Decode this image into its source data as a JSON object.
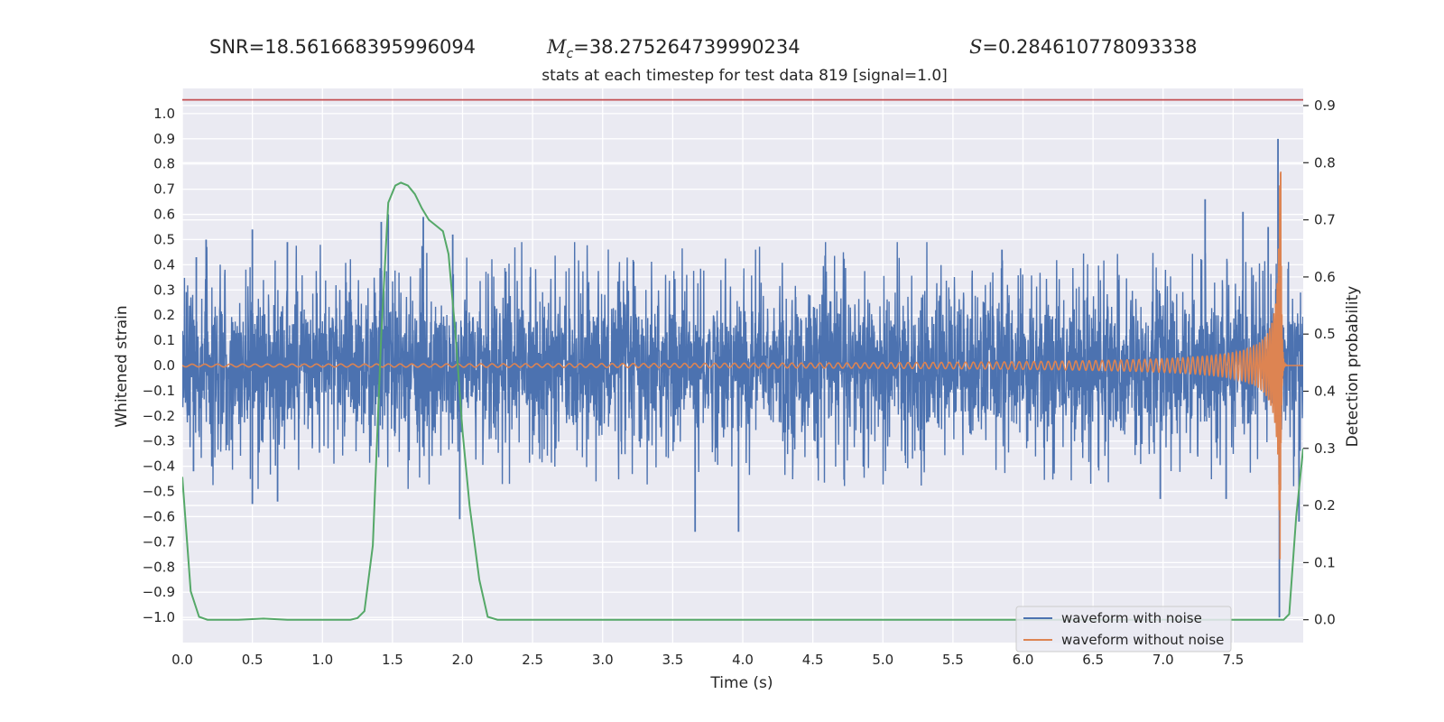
{
  "stats": {
    "snr": "SNR=18.561668395996094",
    "mc_symbol": "M",
    "mc_sub": "c",
    "mc_value": "=38.275264739990234",
    "s_symbol": "S",
    "s_value": "=0.284610778093338"
  },
  "chart_data": {
    "type": "line",
    "title": "stats at each timestep for test data 819 [signal=1.0]",
    "xlabel": "Time (s)",
    "ylabel": "Whitened strain",
    "y2label": "Detection probability",
    "xlim": [
      0,
      8
    ],
    "ylim": [
      -1.1,
      1.1
    ],
    "y2lim": [
      -0.04,
      0.93
    ],
    "xticks": [
      0.0,
      0.5,
      1.0,
      1.5,
      2.0,
      2.5,
      3.0,
      3.5,
      4.0,
      4.5,
      5.0,
      5.5,
      6.0,
      6.5,
      7.0,
      7.5
    ],
    "xtick_labels": [
      "0.0",
      "0.5",
      "1.0",
      "1.5",
      "2.0",
      "2.5",
      "3.0",
      "3.5",
      "4.0",
      "4.5",
      "5.0",
      "5.5",
      "6.0",
      "6.5",
      "7.0",
      "7.5"
    ],
    "yticks": [
      1.0,
      0.9,
      0.8,
      0.7,
      0.6,
      0.5,
      0.4,
      0.3,
      0.2,
      0.1,
      0.0,
      -0.1,
      -0.2,
      -0.3,
      -0.4,
      -0.5,
      -0.6,
      -0.7,
      -0.8,
      -0.9,
      -1.0
    ],
    "ytick_labels": [
      "1.0",
      "0.9",
      "0.8",
      "0.7",
      "0.6",
      "0.5",
      "0.4",
      "0.3",
      "0.2",
      "0.1",
      "0.0",
      "−0.1",
      "−0.2",
      "−0.3",
      "−0.4",
      "−0.5",
      "−0.6",
      "−0.7",
      "−0.8",
      "−0.9",
      "−1.0"
    ],
    "y2ticks": [
      0.9,
      0.8,
      0.7,
      0.6,
      0.5,
      0.4,
      0.3,
      0.2,
      0.1,
      0.0
    ],
    "y2tick_labels": [
      "0.9",
      "0.8",
      "0.7",
      "0.6",
      "0.5",
      "0.4",
      "0.3",
      "0.2",
      "0.1",
      "0.0"
    ],
    "grid": true,
    "legend_position": "bottom-right",
    "threshold": {
      "axis": "y2",
      "value": 0.91,
      "color": "#c44e52"
    },
    "series": [
      {
        "name": "waveform with noise",
        "axis": "y",
        "color": "#4c72b0",
        "style": "dense-noise",
        "envelope_typical": 0.3,
        "peak_events": [
          {
            "x": 0.1,
            "y": 0.43
          },
          {
            "x": 0.17,
            "y": 0.5
          },
          {
            "x": 0.5,
            "y": 0.54
          },
          {
            "x": 0.75,
            "y": 0.49
          },
          {
            "x": 1.42,
            "y": 0.57
          },
          {
            "x": 1.47,
            "y": 0.6
          },
          {
            "x": 1.72,
            "y": 0.59
          },
          {
            "x": 1.93,
            "y": 0.52
          },
          {
            "x": 5.85,
            "y": 0.46
          },
          {
            "x": 7.3,
            "y": 0.66
          },
          {
            "x": 7.57,
            "y": 0.61
          },
          {
            "x": 7.75,
            "y": 0.55
          },
          {
            "x": 0.08,
            "y": -0.42
          },
          {
            "x": 0.5,
            "y": -0.55
          },
          {
            "x": 0.68,
            "y": -0.54
          },
          {
            "x": 1.98,
            "y": -0.61
          },
          {
            "x": 3.66,
            "y": -0.66
          },
          {
            "x": 3.97,
            "y": -0.66
          },
          {
            "x": 6.98,
            "y": -0.53
          },
          {
            "x": 7.45,
            "y": -0.53
          },
          {
            "x": 7.82,
            "y": 0.9
          },
          {
            "x": 7.83,
            "y": -1.0
          },
          {
            "x": 7.97,
            "y": -0.62
          }
        ]
      },
      {
        "name": "waveform without noise",
        "axis": "y",
        "color": "#dd8452",
        "style": "chirp",
        "merger_time": 7.84,
        "peak_amplitude": 0.77
      },
      {
        "name": "",
        "axis": "y2",
        "color": "#55a868",
        "x": [
          0.0,
          0.06,
          0.12,
          0.18,
          0.25,
          0.4,
          0.58,
          0.75,
          0.95,
          1.1,
          1.2,
          1.25,
          1.3,
          1.36,
          1.42,
          1.47,
          1.52,
          1.56,
          1.61,
          1.66,
          1.71,
          1.76,
          1.81,
          1.86,
          1.9,
          1.95,
          2.0,
          2.05,
          2.12,
          2.18,
          2.25,
          3.0,
          4.0,
          5.0,
          6.0,
          7.0,
          7.6,
          7.78,
          7.82,
          7.86,
          7.9,
          7.95,
          8.0
        ],
        "y": [
          0.25,
          0.05,
          0.005,
          0.0,
          0.0,
          0.0,
          0.002,
          0.0,
          0.0,
          0.0,
          0.0,
          0.003,
          0.015,
          0.13,
          0.5,
          0.73,
          0.76,
          0.765,
          0.76,
          0.745,
          0.72,
          0.7,
          0.69,
          0.68,
          0.64,
          0.5,
          0.33,
          0.2,
          0.07,
          0.005,
          0.0,
          0.0,
          0.0,
          0.0,
          0.0,
          0.0,
          0.0,
          0.0,
          0.0,
          0.0,
          0.01,
          0.18,
          0.3
        ]
      }
    ]
  }
}
